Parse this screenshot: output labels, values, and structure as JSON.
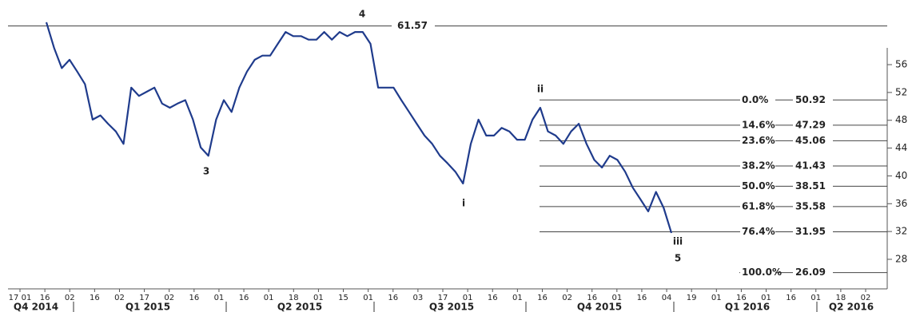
{
  "chart_data": {
    "type": "line",
    "color": "#1f3b8c",
    "values": [
      62.1,
      58.4,
      55.5,
      56.7,
      55,
      53.2,
      48.1,
      48.7,
      47.5,
      46.4,
      44.6,
      52.7,
      51.5,
      52.1,
      52.7,
      50.4,
      49.8,
      50.4,
      50.9,
      48.1,
      44.1,
      42.9,
      48.1,
      50.9,
      49.2,
      52.7,
      55,
      56.7,
      57.3,
      57.3,
      59,
      60.7,
      60.1,
      60.1,
      59.6,
      59.6,
      60.7,
      59.6,
      60.7,
      60.1,
      60.7,
      60.7,
      59,
      52.7,
      52.7,
      52.7,
      50.9,
      49.2,
      47.5,
      45.8,
      44.6,
      42.9,
      41.8,
      40.6,
      38.9,
      44.6,
      48.1,
      45.8,
      45.8,
      46.9,
      46.4,
      45.2,
      45.2,
      48.1,
      49.8,
      46.4,
      45.8,
      44.6,
      46.4,
      47.5,
      44.6,
      42.3,
      41.2,
      42.9,
      42.3,
      40.6,
      38.3,
      36.6,
      34.9,
      37.7,
      35.4,
      31.8
    ],
    "ylim": [
      23.75,
      65.3
    ],
    "yticks": [
      28,
      32,
      36,
      40,
      44,
      48,
      52,
      56
    ],
    "x_tick_labels": [
      "17 01",
      "16",
      "02",
      "16",
      "02",
      "17",
      "02",
      "16",
      "01",
      "16",
      "01",
      "18",
      "01",
      "15",
      "01",
      "16",
      "03",
      "17",
      "01",
      "16",
      "01",
      "16",
      "02",
      "16",
      "01",
      "16",
      "04",
      "19",
      "01",
      "16",
      "01",
      "16",
      "01",
      "18",
      "02"
    ],
    "quarters": [
      "Q4 2014",
      "Q1 2015",
      "Q2 2015",
      "Q3 2015",
      "Q4 2015",
      "Q1 2016",
      "Q2 2016"
    ],
    "reference_line": 61.57,
    "fib_levels": [
      {
        "label": "0.0%",
        "value": 50.92
      },
      {
        "label": "14.6%",
        "value": 47.29
      },
      {
        "label": "23.6%",
        "value": 45.06
      },
      {
        "label": "38.2%",
        "value": 41.43
      },
      {
        "label": "50.0%",
        "value": 38.51
      },
      {
        "label": "61.8%",
        "value": 35.58
      },
      {
        "label": "76.4%",
        "value": 31.95
      },
      {
        "label": "100.0%",
        "value": 26.09
      }
    ],
    "wave_labels": [
      "4",
      "3",
      "ii",
      "i",
      "iii",
      "5"
    ]
  }
}
